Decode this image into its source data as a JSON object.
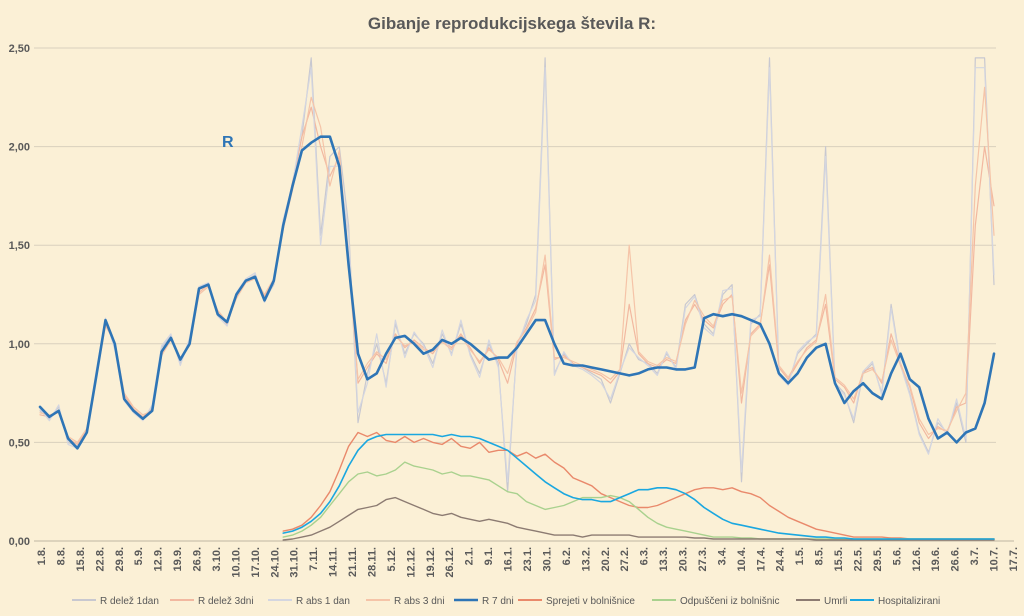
{
  "chart_data": {
    "type": "line",
    "title": "Gibanje reprodukcijskega števila R:",
    "annotation": "R",
    "ylim": [
      0,
      2.5
    ],
    "yticks": [
      0,
      0.5,
      1.0,
      1.5,
      2.0,
      2.5
    ],
    "ytick_labels": [
      "0,00",
      "0,50",
      "1,00",
      "1,50",
      "2,00",
      "2,50"
    ],
    "grid": "horizontal",
    "legend_position": "bottom",
    "x_labels": [
      "1.8.",
      "8.8.",
      "15.8.",
      "22.8.",
      "29.8.",
      "5.9.",
      "12.9.",
      "19.9.",
      "26.9.",
      "3.10.",
      "10.10.",
      "17.10.",
      "24.10.",
      "31.10.",
      "7.11.",
      "14.11.",
      "21.11.",
      "28.11.",
      "5.12.",
      "12.12.",
      "19.12.",
      "26.12.",
      "2.1.",
      "9.1.",
      "16.1.",
      "23.1.",
      "30.1.",
      "6.2.",
      "13.2.",
      "20.2.",
      "27.2.",
      "6.3.",
      "13.3.",
      "20.3.",
      "27.3.",
      "3.4.",
      "10.4.",
      "17.4.",
      "24.4.",
      "1.5.",
      "8.5.",
      "15.5.",
      "22.5.",
      "29.5.",
      "5.6.",
      "12.6.",
      "19.6.",
      "26.6.",
      "3.7.",
      "10.7.",
      "17.7."
    ],
    "series": [
      {
        "name": "R delež 1dan",
        "color": "#c8c8d0",
        "width": 1.2,
        "values": [
          0.66,
          0.62,
          0.68,
          0.5,
          0.48,
          0.55,
          0.85,
          1.12,
          0.98,
          0.72,
          0.66,
          0.62,
          0.68,
          0.98,
          1.04,
          0.9,
          1.02,
          1.28,
          1.3,
          1.15,
          1.1,
          1.25,
          1.32,
          1.35,
          1.22,
          1.3,
          1.62,
          1.8,
          2.05,
          2.45,
          1.55,
          1.95,
          2.0,
          1.6,
          0.6,
          0.85,
          1.0,
          0.8,
          1.1,
          0.95,
          1.05,
          1.0,
          0.9,
          1.05,
          0.95,
          1.1,
          0.95,
          0.85,
          1.0,
          0.9,
          0.25,
          1.0,
          1.1,
          1.25,
          2.45,
          0.85,
          0.95,
          0.9,
          0.88,
          0.85,
          0.82,
          0.7,
          0.85,
          1.0,
          0.92,
          0.9,
          0.85,
          0.95,
          0.88,
          1.2,
          1.25,
          1.1,
          1.05,
          1.25,
          1.3,
          0.3,
          1.1,
          1.15,
          2.45,
          0.85,
          0.8,
          0.95,
          1.0,
          1.05,
          2.0,
          0.8,
          0.75,
          0.6,
          0.85,
          0.9,
          0.75,
          1.2,
          0.9,
          0.75,
          0.55,
          0.45,
          0.6,
          0.55,
          0.7,
          0.5,
          2.45,
          2.45,
          1.3
        ]
      },
      {
        "name": "R delež 3dni",
        "color": "#f2b8a0",
        "width": 1.2,
        "values": [
          0.64,
          0.63,
          0.66,
          0.52,
          0.49,
          0.56,
          0.82,
          1.1,
          1.0,
          0.74,
          0.67,
          0.63,
          0.67,
          0.95,
          1.03,
          0.92,
          1.0,
          1.26,
          1.3,
          1.16,
          1.1,
          1.24,
          1.32,
          1.34,
          1.24,
          1.32,
          1.6,
          1.82,
          2.05,
          2.2,
          2.0,
          1.85,
          1.95,
          1.45,
          0.8,
          0.88,
          0.95,
          0.9,
          1.05,
          0.98,
          1.02,
          0.98,
          0.95,
          1.02,
          0.98,
          1.05,
          0.98,
          0.9,
          0.98,
          0.92,
          0.8,
          1.0,
          1.08,
          1.18,
          1.4,
          0.92,
          0.94,
          0.9,
          0.88,
          0.86,
          0.84,
          0.8,
          0.86,
          1.2,
          0.95,
          0.9,
          0.88,
          0.92,
          0.9,
          1.12,
          1.2,
          1.12,
          1.08,
          1.2,
          1.25,
          0.7,
          1.05,
          1.1,
          1.4,
          0.88,
          0.82,
          0.9,
          0.98,
          1.02,
          1.2,
          0.82,
          0.78,
          0.7,
          0.86,
          0.88,
          0.8,
          1.05,
          0.9,
          0.78,
          0.6,
          0.52,
          0.58,
          0.55,
          0.68,
          0.7,
          1.6,
          2.0,
          1.7
        ]
      },
      {
        "name": "R abs 1 dan",
        "color": "#d4d6e0",
        "width": 1.2,
        "values": [
          0.67,
          0.61,
          0.69,
          0.49,
          0.47,
          0.56,
          0.86,
          1.13,
          0.97,
          0.71,
          0.65,
          0.61,
          0.69,
          0.99,
          1.05,
          0.89,
          1.03,
          1.29,
          1.31,
          1.14,
          1.09,
          1.26,
          1.33,
          1.36,
          1.21,
          1.31,
          1.63,
          1.81,
          2.1,
          2.4,
          1.5,
          1.9,
          1.9,
          1.55,
          0.65,
          0.8,
          1.05,
          0.78,
          1.12,
          0.93,
          1.06,
          0.99,
          0.88,
          1.07,
          0.94,
          1.12,
          0.94,
          0.83,
          1.02,
          0.88,
          0.3,
          0.98,
          1.12,
          1.22,
          2.4,
          0.84,
          0.96,
          0.89,
          0.87,
          0.84,
          0.8,
          0.72,
          0.86,
          0.98,
          0.93,
          0.89,
          0.84,
          0.96,
          0.87,
          1.18,
          1.24,
          1.08,
          1.04,
          1.27,
          1.28,
          0.35,
          1.12,
          1.14,
          2.4,
          0.84,
          0.79,
          0.96,
          1.01,
          1.04,
          1.95,
          0.79,
          0.74,
          0.62,
          0.86,
          0.91,
          0.74,
          1.18,
          0.89,
          0.74,
          0.54,
          0.44,
          0.62,
          0.54,
          0.72,
          0.52,
          2.4,
          2.4,
          1.35
        ]
      },
      {
        "name": "R abs 3 dni",
        "color": "#f5c4a8",
        "width": 1.2,
        "values": [
          0.65,
          0.64,
          0.65,
          0.53,
          0.5,
          0.57,
          0.83,
          1.09,
          1.01,
          0.75,
          0.68,
          0.64,
          0.66,
          0.94,
          1.02,
          0.93,
          0.99,
          1.25,
          1.29,
          1.17,
          1.11,
          1.23,
          1.31,
          1.33,
          1.25,
          1.33,
          1.58,
          1.78,
          2.0,
          2.25,
          2.1,
          1.8,
          1.98,
          1.4,
          0.82,
          0.9,
          0.96,
          0.92,
          1.04,
          0.99,
          1.01,
          0.97,
          0.96,
          1.01,
          0.97,
          1.04,
          0.97,
          0.91,
          0.97,
          0.93,
          0.85,
          1.01,
          1.07,
          1.16,
          1.45,
          0.93,
          0.93,
          0.91,
          0.89,
          0.87,
          0.85,
          0.82,
          0.87,
          1.5,
          0.96,
          0.91,
          0.89,
          0.93,
          0.91,
          1.1,
          1.22,
          1.14,
          1.09,
          1.22,
          1.24,
          0.75,
          1.04,
          1.09,
          1.45,
          0.89,
          0.83,
          0.91,
          0.97,
          1.01,
          1.25,
          0.83,
          0.79,
          0.72,
          0.85,
          0.87,
          0.81,
          1.02,
          0.89,
          0.79,
          0.62,
          0.54,
          0.57,
          0.56,
          0.66,
          0.75,
          1.8,
          2.3,
          1.55
        ]
      },
      {
        "name": "R 7 dni",
        "color": "#2e75b6",
        "width": 2.6,
        "values": [
          0.68,
          0.63,
          0.66,
          0.52,
          0.47,
          0.55,
          0.83,
          1.12,
          1.0,
          0.72,
          0.66,
          0.62,
          0.66,
          0.96,
          1.03,
          0.92,
          1.0,
          1.28,
          1.3,
          1.15,
          1.11,
          1.25,
          1.32,
          1.34,
          1.22,
          1.32,
          1.6,
          1.8,
          1.98,
          2.02,
          2.05,
          2.05,
          1.9,
          1.4,
          0.95,
          0.82,
          0.85,
          0.95,
          1.03,
          1.04,
          1.0,
          0.95,
          0.97,
          1.02,
          1.0,
          1.03,
          1.0,
          0.96,
          0.92,
          0.93,
          0.93,
          0.98,
          1.05,
          1.12,
          1.12,
          1.0,
          0.9,
          0.89,
          0.89,
          0.88,
          0.87,
          0.86,
          0.85,
          0.84,
          0.85,
          0.87,
          0.88,
          0.88,
          0.87,
          0.87,
          0.88,
          1.13,
          1.15,
          1.14,
          1.15,
          1.14,
          1.12,
          1.1,
          1.0,
          0.85,
          0.8,
          0.85,
          0.93,
          0.98,
          1.0,
          0.8,
          0.7,
          0.76,
          0.8,
          0.75,
          0.72,
          0.85,
          0.95,
          0.82,
          0.78,
          0.62,
          0.52,
          0.55,
          0.5,
          0.55,
          0.57,
          0.7,
          0.95
        ]
      },
      {
        "name": "Sprejeti v bolnišnice",
        "color": "#e9896b",
        "width": 1.4,
        "values": [
          null,
          null,
          null,
          null,
          null,
          null,
          null,
          null,
          null,
          null,
          null,
          null,
          null,
          null,
          null,
          null,
          null,
          null,
          null,
          null,
          null,
          null,
          null,
          null,
          null,
          null,
          0.05,
          0.06,
          0.08,
          0.12,
          0.18,
          0.25,
          0.36,
          0.48,
          0.55,
          0.53,
          0.55,
          0.51,
          0.5,
          0.53,
          0.5,
          0.52,
          0.5,
          0.49,
          0.52,
          0.48,
          0.47,
          0.5,
          0.45,
          0.46,
          0.46,
          0.43,
          0.45,
          0.42,
          0.44,
          0.4,
          0.37,
          0.32,
          0.3,
          0.28,
          0.24,
          0.22,
          0.2,
          0.18,
          0.17,
          0.17,
          0.18,
          0.2,
          0.22,
          0.24,
          0.26,
          0.27,
          0.27,
          0.26,
          0.27,
          0.25,
          0.24,
          0.22,
          0.18,
          0.15,
          0.12,
          0.1,
          0.08,
          0.06,
          0.05,
          0.04,
          0.03,
          0.02,
          0.02,
          0.02,
          0.02,
          0.015,
          0.015,
          0.01,
          0.01,
          0.01,
          0.01,
          0.01,
          0.01,
          0.01,
          0.01,
          0.01,
          0.01
        ]
      },
      {
        "name": "Odpuščeni iz bolnišnic",
        "color": "#a9d18e",
        "width": 1.4,
        "values": [
          null,
          null,
          null,
          null,
          null,
          null,
          null,
          null,
          null,
          null,
          null,
          null,
          null,
          null,
          null,
          null,
          null,
          null,
          null,
          null,
          null,
          null,
          null,
          null,
          null,
          null,
          0.02,
          0.03,
          0.05,
          0.08,
          0.12,
          0.18,
          0.24,
          0.3,
          0.34,
          0.35,
          0.33,
          0.34,
          0.36,
          0.4,
          0.38,
          0.37,
          0.36,
          0.34,
          0.35,
          0.33,
          0.33,
          0.32,
          0.31,
          0.28,
          0.25,
          0.24,
          0.2,
          0.18,
          0.16,
          0.17,
          0.18,
          0.2,
          0.22,
          0.22,
          0.22,
          0.23,
          0.22,
          0.2,
          0.16,
          0.12,
          0.09,
          0.07,
          0.06,
          0.05,
          0.04,
          0.03,
          0.02,
          0.02,
          0.02,
          0.015,
          0.015,
          0.01,
          0.01,
          0.01,
          0.01,
          0.01,
          0.01,
          0.01,
          0.01,
          0.01,
          0.01,
          0.01,
          0.01,
          0.01,
          0.01,
          0.01,
          0.01,
          0.01,
          0.01,
          0.01,
          0.01,
          0.01,
          0.01,
          0.01,
          0.01,
          0.01,
          0.01
        ]
      },
      {
        "name": "Umrli",
        "color": "#8c7b72",
        "width": 1.4,
        "values": [
          null,
          null,
          null,
          null,
          null,
          null,
          null,
          null,
          null,
          null,
          null,
          null,
          null,
          null,
          null,
          null,
          null,
          null,
          null,
          null,
          null,
          null,
          null,
          null,
          null,
          null,
          0.005,
          0.01,
          0.02,
          0.03,
          0.05,
          0.07,
          0.1,
          0.13,
          0.16,
          0.17,
          0.18,
          0.21,
          0.22,
          0.2,
          0.18,
          0.16,
          0.14,
          0.13,
          0.14,
          0.12,
          0.11,
          0.1,
          0.11,
          0.1,
          0.09,
          0.07,
          0.06,
          0.05,
          0.04,
          0.03,
          0.03,
          0.03,
          0.02,
          0.03,
          0.03,
          0.03,
          0.03,
          0.03,
          0.02,
          0.02,
          0.02,
          0.02,
          0.02,
          0.02,
          0.015,
          0.015,
          0.01,
          0.01,
          0.01,
          0.01,
          0.01,
          0.01,
          0.01,
          0.01,
          0.01,
          0.01,
          0.01,
          0.005,
          0.005,
          0.005,
          0.005,
          0.005,
          0.005,
          0.005,
          0.005,
          0.005,
          0.005,
          0.005,
          0.005,
          0.005,
          0.005,
          0.005,
          0.005,
          0.005,
          0.005,
          0.005,
          0.005
        ]
      },
      {
        "name": "Hospitalizirani",
        "color": "#1aa7e0",
        "width": 1.6,
        "values": [
          null,
          null,
          null,
          null,
          null,
          null,
          null,
          null,
          null,
          null,
          null,
          null,
          null,
          null,
          null,
          null,
          null,
          null,
          null,
          null,
          null,
          null,
          null,
          null,
          null,
          null,
          0.04,
          0.05,
          0.07,
          0.1,
          0.14,
          0.2,
          0.28,
          0.38,
          0.46,
          0.51,
          0.53,
          0.54,
          0.54,
          0.54,
          0.54,
          0.54,
          0.54,
          0.53,
          0.54,
          0.53,
          0.53,
          0.52,
          0.5,
          0.48,
          0.46,
          0.42,
          0.38,
          0.34,
          0.3,
          0.27,
          0.24,
          0.22,
          0.21,
          0.21,
          0.2,
          0.2,
          0.22,
          0.24,
          0.26,
          0.26,
          0.27,
          0.27,
          0.26,
          0.24,
          0.21,
          0.17,
          0.14,
          0.11,
          0.09,
          0.08,
          0.07,
          0.06,
          0.05,
          0.04,
          0.035,
          0.03,
          0.025,
          0.02,
          0.02,
          0.015,
          0.015,
          0.01,
          0.01,
          0.01,
          0.01,
          0.01,
          0.01,
          0.01,
          0.01,
          0.01,
          0.01,
          0.01,
          0.01,
          0.01,
          0.01,
          0.01,
          0.01
        ]
      }
    ]
  }
}
